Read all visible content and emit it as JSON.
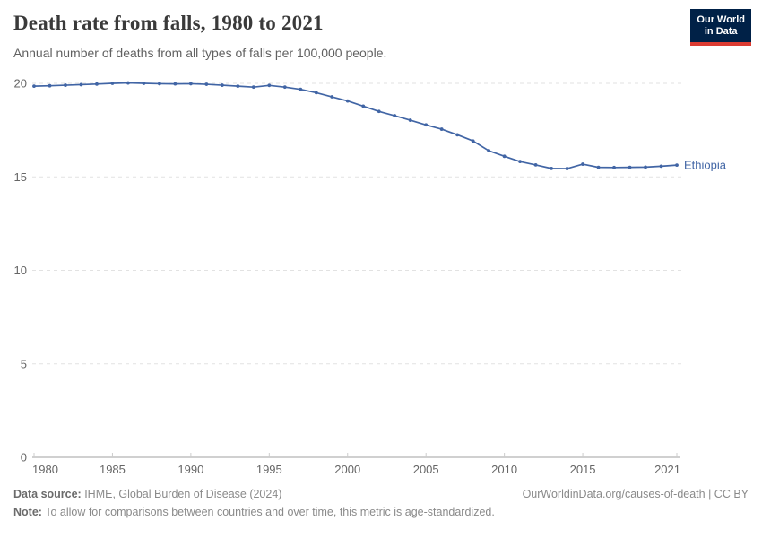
{
  "header": {
    "title": "Death rate from falls, 1980 to 2021",
    "subtitle": "Annual number of deaths from all types of falls per 100,000 people.",
    "logo": {
      "line1": "Our World",
      "line2": "in Data"
    }
  },
  "chart_data": {
    "type": "line",
    "title": "Death rate from falls, 1980 to 2021",
    "subtitle": "Annual number of deaths from all types of falls per 100,000 people.",
    "xlabel": "",
    "ylabel": "",
    "xlim": [
      1980,
      2021
    ],
    "ylim": [
      0,
      20
    ],
    "x_ticks": [
      1980,
      1985,
      1990,
      1995,
      2000,
      2005,
      2010,
      2015,
      2021
    ],
    "y_ticks": [
      0,
      5,
      10,
      15,
      20
    ],
    "grid": "horizontal-dashed",
    "legend_position": "end-of-line-label",
    "series": [
      {
        "name": "Ethiopia",
        "color": "#4165a5",
        "x": [
          1980,
          1981,
          1982,
          1983,
          1984,
          1985,
          1986,
          1987,
          1988,
          1989,
          1990,
          1991,
          1992,
          1993,
          1994,
          1995,
          1996,
          1997,
          1998,
          1999,
          2000,
          2001,
          2002,
          2003,
          2004,
          2005,
          2006,
          2007,
          2008,
          2009,
          2010,
          2011,
          2012,
          2013,
          2014,
          2015,
          2016,
          2017,
          2018,
          2019,
          2020,
          2021
        ],
        "values": [
          19.85,
          19.87,
          19.9,
          19.93,
          19.96,
          20.0,
          20.02,
          20.0,
          19.98,
          19.97,
          19.98,
          19.95,
          19.9,
          19.85,
          19.8,
          19.89,
          19.8,
          19.68,
          19.5,
          19.28,
          19.06,
          18.78,
          18.5,
          18.27,
          18.03,
          17.78,
          17.55,
          17.25,
          16.92,
          16.4,
          16.1,
          15.82,
          15.64,
          15.45,
          15.44,
          15.68,
          15.51,
          15.5,
          15.51,
          15.52,
          15.57,
          15.63
        ]
      }
    ]
  },
  "footer": {
    "datasource_label": "Data source:",
    "datasource_text": " IHME, Global Burden of Disease (2024)",
    "link_text": "OurWorldinData.org/causes-of-death | CC BY",
    "note_label": "Note:",
    "note_text": " To allow for comparisons between countries and over time, this metric is age-standardized."
  },
  "colors": {
    "line": "#4165a5",
    "grid": "#e2e2e2",
    "axis": "#a1a1a1",
    "axis_tick": "#cccccc",
    "tick_label": "#666666",
    "logo_bg": "#002147",
    "logo_accent": "#dc3b32"
  }
}
